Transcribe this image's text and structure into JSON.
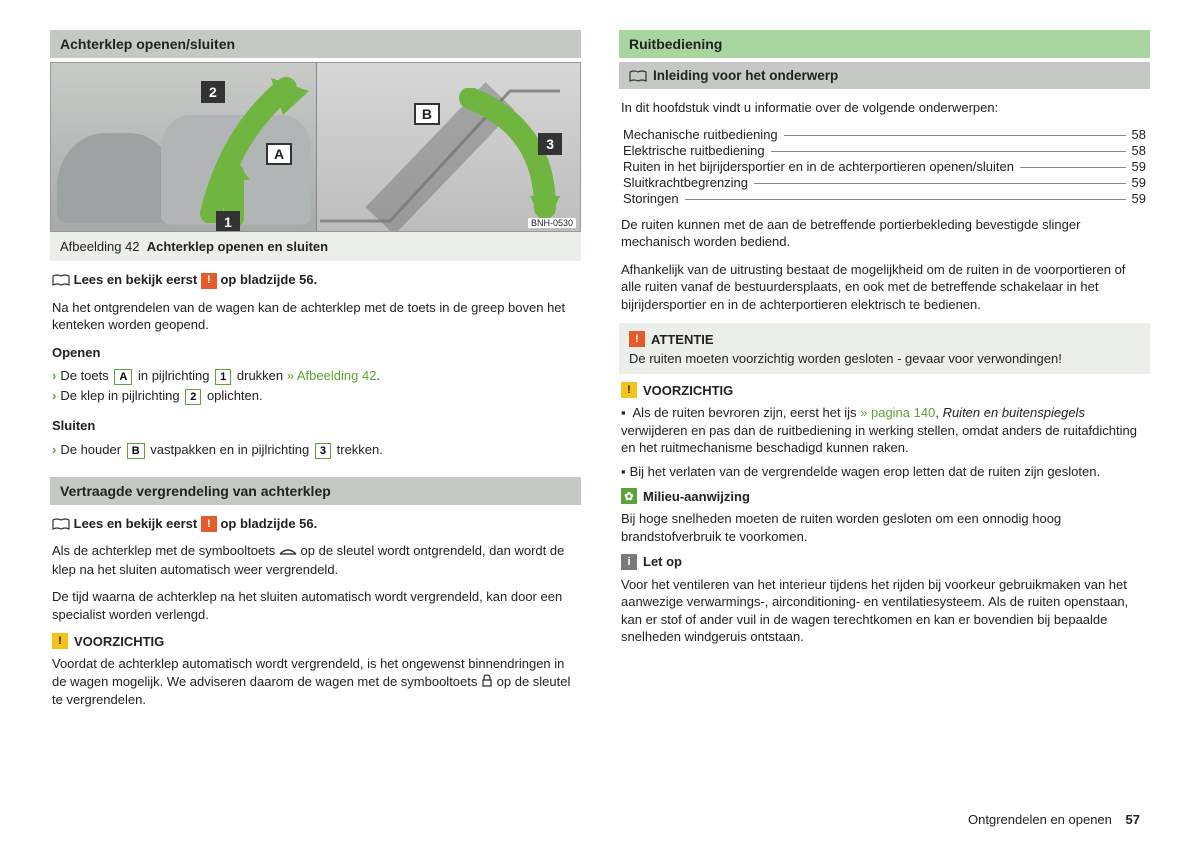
{
  "left": {
    "h1": "Achterklep openen/sluiten",
    "fig": {
      "code": "BNH-0530",
      "labelA": "A",
      "labelB": "B",
      "n1": "1",
      "n2": "2",
      "n3": "3"
    },
    "caption_prefix": "Afbeelding 42",
    "caption_text": "Achterklep openen en sluiten",
    "read_first_1": "Lees en bekijk eerst",
    "read_first_2": "op bladzijde 56.",
    "p1": "Na het ontgrendelen van de wagen kan de achterklep met de toets in de greep boven het kenteken worden geopend.",
    "openen": "Openen",
    "openen_b1a": "De toets",
    "openen_b1b": "in pijlrichting",
    "openen_b1c": "drukken",
    "openen_b1_ref": "» Afbeelding 42",
    "openen_b2a": "De klep in pijlrichting",
    "openen_b2b": "oplichten.",
    "sluiten": "Sluiten",
    "sluiten_b1a": "De houder",
    "sluiten_b1b": "vastpakken en in pijlrichting",
    "sluiten_b1c": "trekken.",
    "h2": "Vertraagde vergrendeling van achterklep",
    "p2a": "Als de achterklep met de symbooltoets",
    "p2b": "op de sleutel wordt ontgrendeld, dan wordt de klep na het sluiten automatisch weer vergrendeld.",
    "p3": "De tijd waarna de achterklep na het sluiten automatisch wordt vergrendeld, kan door een specialist worden verlengd.",
    "voorzichtig": "VOORZICHTIG",
    "p4a": "Voordat de achterklep automatisch wordt vergrendeld, is het ongewenst binnendringen in de wagen mogelijk. We adviseren daarom de wagen met de symbooltoets",
    "p4b": "op de sleutel te vergrendelen."
  },
  "right": {
    "h1": "Ruitbediening",
    "sub": "Inleiding voor het onderwerp",
    "p1": "In dit hoofdstuk vindt u informatie over de volgende onderwerpen:",
    "toc": [
      {
        "label": "Mechanische ruitbediening",
        "page": "58"
      },
      {
        "label": "Elektrische ruitbediening",
        "page": "58"
      },
      {
        "label": "Ruiten in het bijrijdersportier en in de achterportieren openen/sluiten",
        "page": "59"
      },
      {
        "label": "Sluitkrachtbegrenzing",
        "page": "59"
      },
      {
        "label": "Storingen",
        "page": "59"
      }
    ],
    "p2": "De ruiten kunnen met de aan de betreffende portierbekleding bevestigde slinger mechanisch worden bediend.",
    "p3": "Afhankelijk van de uitrusting bestaat de mogelijkheid om de ruiten in de voorportieren of alle ruiten vanaf de bestuurdersplaats, en ook met de betreffende schakelaar in het bijrijdersportier en in de achterportieren elektrisch te bedienen.",
    "attentie": "ATTENTIE",
    "attentie_body": "De ruiten moeten voorzichtig worden gesloten - gevaar voor verwondingen!",
    "voorzichtig": "VOORZICHTIG",
    "vz_b1a": "Als de ruiten bevroren zijn, eerst het ijs",
    "vz_b1_ref": "» pagina 140",
    "vz_b1b": ", ",
    "vz_b1_em": "Ruiten en buitenspiegels",
    "vz_b1c": " verwijderen en pas dan de ruitbediening in werking stellen, omdat anders de ruitafdichting en het ruitmechanisme beschadigd kunnen raken.",
    "vz_b2": "Bij het verlaten van de vergrendelde wagen erop letten dat de ruiten zijn gesloten.",
    "milieu": "Milieu-aanwijzing",
    "milieu_body": "Bij hoge snelheden moeten de ruiten worden gesloten om een onnodig hoog brandstofverbruik te voorkomen.",
    "letop": "Let op",
    "letop_body": "Voor het ventileren van het interieur tijdens het rijden bij voorkeur gebruikmaken van het aanwezige verwarmings-, airconditioning- en ventilatiesysteem. Als de ruiten openstaan, kan er stof of ander vuil in de wagen terechtkomen en kan er bovendien bij bepaalde snelheden windgeruis ontstaan."
  },
  "footer": {
    "section": "Ontgrendelen en openen",
    "page": "57"
  }
}
